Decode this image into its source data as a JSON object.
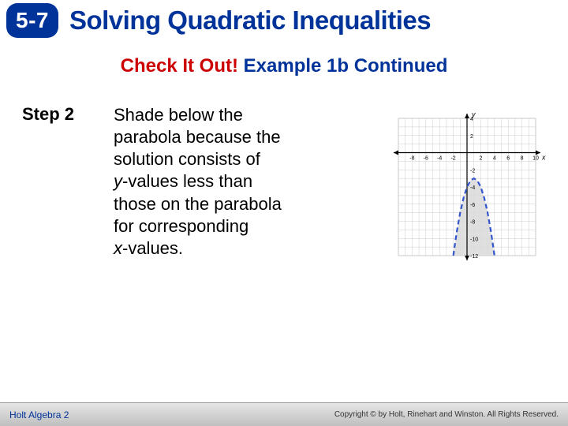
{
  "header": {
    "lesson_number": "5-7",
    "title": "Solving Quadratic Inequalities"
  },
  "subtitle": {
    "red_text": "Check It Out!",
    "blue_text": " Example 1b Continued"
  },
  "step": {
    "label": "Step 2",
    "line1": " Shade below the",
    "line2": "parabola because the",
    "line3": "solution consists of",
    "line4a_ital": "y",
    "line4b": "-values less than",
    "line5": "those on the parabola",
    "line6": "for corresponding",
    "line7a_ital": "x",
    "line7b": "-values."
  },
  "graph": {
    "xlim": [
      -10,
      10
    ],
    "ylim": [
      -12,
      4
    ],
    "xticks": [
      -8,
      -6,
      -4,
      -2,
      2,
      4,
      6,
      8,
      10
    ],
    "xtick_labels": [
      "-8",
      "-6",
      "-4",
      "-2",
      "2",
      "4",
      "6",
      "8",
      "10"
    ],
    "yticks": [
      4,
      2,
      -2,
      -4,
      -6,
      -8,
      -10,
      -12
    ],
    "ytick_labels": [
      "4",
      "2",
      "-2",
      "-4",
      "-6",
      "-8",
      "-10",
      "-12"
    ],
    "grid_color": "#cccccc",
    "axis_color": "#000000",
    "background": "#ffffff",
    "x_axis_label": "x",
    "y_axis_label": "y",
    "parabola": {
      "color": "#3355cc",
      "dash": "6,4",
      "stroke_width": 2.2,
      "vertex": [
        1,
        -3
      ],
      "a": -1,
      "fill_color": "#d9d9d9",
      "fill_opacity": 0.85,
      "points_x": [
        -2,
        -1.5,
        -1,
        -0.5,
        0,
        0.5,
        1,
        1.5,
        2,
        2.5,
        3,
        3.5,
        4
      ],
      "points_y": [
        -12,
        -9.25,
        -7,
        -5.25,
        -4,
        -3.25,
        -3,
        -3.25,
        -4,
        -5.25,
        -7,
        -9.25,
        -12
      ]
    }
  },
  "footer": {
    "left": "Holt Algebra 2",
    "right": "Copyright © by Holt, Rinehart and Winston. All Rights Reserved."
  },
  "colors": {
    "brand_blue": "#003399",
    "accent_red": "#cc0000",
    "badge_bg": "#003399",
    "yellow": "#ffcc33"
  }
}
